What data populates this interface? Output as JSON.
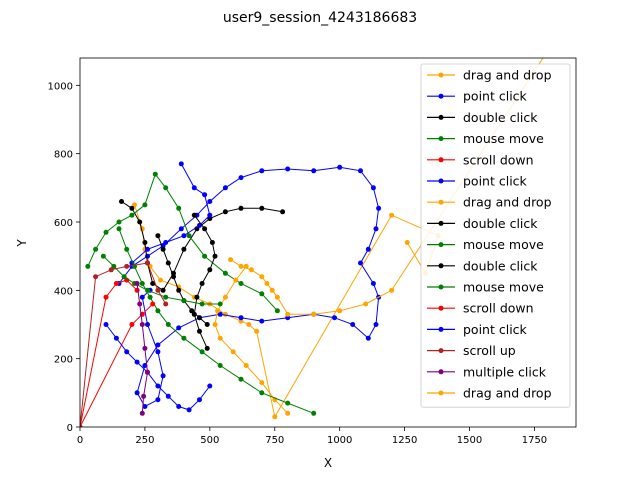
{
  "chart_data": {
    "type": "line",
    "title": "user9_session_4243186683",
    "xlabel": "X",
    "ylabel": "Y",
    "xlim": [
      0,
      1910
    ],
    "ylim": [
      0,
      1080
    ],
    "xticks": [
      0,
      250,
      500,
      750,
      1000,
      1250,
      1500,
      1750
    ],
    "yticks": [
      0,
      200,
      400,
      600,
      800,
      1000
    ],
    "grid": false,
    "legend_position": "top-right",
    "series": [
      {
        "name": "drag and drop",
        "color": "#ffa500",
        "points": [
          [
            210,
            650
          ],
          [
            240,
            580
          ],
          [
            250,
            520
          ],
          [
            270,
            470
          ],
          [
            310,
            430
          ],
          [
            380,
            410
          ],
          [
            440,
            380
          ],
          [
            500,
            360
          ],
          [
            560,
            330
          ],
          [
            620,
            310
          ],
          [
            650,
            300
          ],
          [
            680,
            280
          ],
          [
            750,
            30
          ],
          [
            1200,
            620
          ],
          [
            1380,
            560
          ],
          [
            1330,
            450
          ],
          [
            1260,
            540
          ]
        ]
      },
      {
        "name": "point click",
        "color": "#0000ff",
        "points": [
          [
            150,
            420
          ],
          [
            200,
            470
          ],
          [
            260,
            500
          ],
          [
            320,
            530
          ],
          [
            390,
            580
          ],
          [
            450,
            620
          ],
          [
            500,
            660
          ],
          [
            560,
            700
          ],
          [
            620,
            730
          ],
          [
            700,
            750
          ],
          [
            800,
            755
          ],
          [
            900,
            750
          ],
          [
            1000,
            760
          ],
          [
            1080,
            750
          ],
          [
            1130,
            700
          ],
          [
            1150,
            640
          ],
          [
            1140,
            580
          ],
          [
            1110,
            520
          ],
          [
            1080,
            480
          ],
          [
            1130,
            420
          ],
          [
            1150,
            380
          ],
          [
            1140,
            300
          ],
          [
            1110,
            260
          ],
          [
            1050,
            300
          ],
          [
            980,
            320
          ],
          [
            900,
            330
          ],
          [
            800,
            320
          ],
          [
            700,
            310
          ],
          [
            620,
            320
          ],
          [
            540,
            330
          ],
          [
            460,
            320
          ],
          [
            380,
            290
          ],
          [
            300,
            240
          ],
          [
            250,
            180
          ],
          [
            220,
            100
          ],
          [
            250,
            60
          ],
          [
            300,
            80
          ],
          [
            320,
            150
          ],
          [
            300,
            220
          ],
          [
            260,
            300
          ],
          [
            240,
            380
          ],
          [
            270,
            400
          ]
        ]
      },
      {
        "name": "double click",
        "color": "#000000",
        "points": [
          [
            160,
            660
          ],
          [
            200,
            640
          ],
          [
            230,
            600
          ],
          [
            250,
            540
          ],
          [
            260,
            480
          ],
          [
            280,
            420
          ],
          [
            320,
            400
          ],
          [
            360,
            450
          ],
          [
            400,
            520
          ],
          [
            450,
            580
          ],
          [
            500,
            610
          ],
          [
            560,
            630
          ],
          [
            620,
            640
          ],
          [
            700,
            640
          ],
          [
            780,
            630
          ]
        ]
      },
      {
        "name": "mouse move",
        "color": "#008000",
        "points": [
          [
            30,
            470
          ],
          [
            60,
            520
          ],
          [
            100,
            570
          ],
          [
            150,
            600
          ],
          [
            200,
            620
          ],
          [
            250,
            650
          ],
          [
            290,
            740
          ],
          [
            330,
            700
          ],
          [
            380,
            640
          ],
          [
            420,
            560
          ],
          [
            480,
            500
          ],
          [
            560,
            450
          ],
          [
            620,
            420
          ],
          [
            700,
            390
          ],
          [
            760,
            340
          ]
        ]
      },
      {
        "name": "scroll down",
        "color": "#ff0000",
        "points": [
          [
            0,
            0
          ],
          [
            100,
            380
          ],
          [
            140,
            420
          ],
          [
            180,
            430
          ],
          [
            220,
            400
          ]
        ]
      },
      {
        "name": "point click",
        "color": "#0000ff",
        "points": [
          [
            390,
            770
          ],
          [
            440,
            700
          ],
          [
            480,
            680
          ],
          [
            500,
            620
          ],
          [
            460,
            590
          ],
          [
            400,
            560
          ],
          [
            330,
            540
          ],
          [
            260,
            520
          ],
          [
            200,
            480
          ]
        ]
      },
      {
        "name": "drag and drop",
        "color": "#ffa500",
        "points": [
          [
            640,
            470
          ],
          [
            600,
            430
          ],
          [
            560,
            380
          ],
          [
            530,
            340
          ],
          [
            520,
            300
          ],
          [
            540,
            260
          ],
          [
            590,
            220
          ],
          [
            640,
            180
          ],
          [
            700,
            130
          ],
          [
            750,
            80
          ],
          [
            800,
            40
          ]
        ]
      },
      {
        "name": "double click",
        "color": "#000000",
        "points": [
          [
            300,
            560
          ],
          [
            320,
            520
          ],
          [
            340,
            480
          ],
          [
            360,
            440
          ],
          [
            380,
            400
          ],
          [
            400,
            370
          ],
          [
            430,
            340
          ],
          [
            460,
            320
          ],
          [
            490,
            300
          ]
        ]
      },
      {
        "name": "mouse move",
        "color": "#008000",
        "points": [
          [
            150,
            580
          ],
          [
            180,
            520
          ],
          [
            210,
            470
          ],
          [
            240,
            420
          ],
          [
            270,
            380
          ],
          [
            300,
            340
          ],
          [
            340,
            300
          ],
          [
            400,
            260
          ],
          [
            470,
            220
          ],
          [
            540,
            180
          ],
          [
            620,
            140
          ],
          [
            700,
            100
          ],
          [
            800,
            70
          ],
          [
            900,
            40
          ]
        ]
      },
      {
        "name": "double click",
        "color": "#000000",
        "points": [
          [
            440,
            620
          ],
          [
            480,
            580
          ],
          [
            510,
            540
          ],
          [
            520,
            500
          ],
          [
            500,
            460
          ],
          [
            470,
            420
          ],
          [
            450,
            380
          ],
          [
            440,
            330
          ],
          [
            460,
            280
          ],
          [
            490,
            230
          ]
        ]
      },
      {
        "name": "mouse move",
        "color": "#008000",
        "points": [
          [
            90,
            500
          ],
          [
            130,
            470
          ],
          [
            170,
            440
          ],
          [
            210,
            420
          ],
          [
            260,
            400
          ],
          [
            330,
            380
          ],
          [
            400,
            370
          ],
          [
            470,
            360
          ],
          [
            540,
            360
          ]
        ]
      },
      {
        "name": "scroll down",
        "color": "#ff0000",
        "points": [
          [
            0,
            0
          ],
          [
            200,
            300
          ],
          [
            240,
            330
          ],
          [
            280,
            360
          ]
        ]
      },
      {
        "name": "point click",
        "color": "#0000ff",
        "points": [
          [
            100,
            300
          ],
          [
            140,
            260
          ],
          [
            180,
            220
          ],
          [
            220,
            190
          ],
          [
            260,
            160
          ],
          [
            300,
            120
          ],
          [
            340,
            90
          ],
          [
            380,
            60
          ],
          [
            420,
            50
          ],
          [
            460,
            80
          ],
          [
            500,
            120
          ]
        ]
      },
      {
        "name": "scroll up",
        "color": "#b22222",
        "points": [
          [
            0,
            0
          ],
          [
            60,
            440
          ],
          [
            120,
            460
          ],
          [
            180,
            470
          ],
          [
            260,
            480
          ],
          [
            300,
            400
          ],
          [
            330,
            360
          ]
        ]
      },
      {
        "name": "multiple click",
        "color": "#800080",
        "points": [
          [
            220,
            420
          ],
          [
            230,
            360
          ],
          [
            240,
            300
          ],
          [
            250,
            230
          ],
          [
            260,
            160
          ],
          [
            245,
            90
          ],
          [
            240,
            40
          ]
        ]
      },
      {
        "name": "drag and drop",
        "color": "#ffa500",
        "points": [
          [
            580,
            490
          ],
          [
            620,
            470
          ],
          [
            660,
            460
          ],
          [
            700,
            440
          ],
          [
            720,
            420
          ],
          [
            740,
            400
          ],
          [
            760,
            380
          ],
          [
            800,
            330
          ],
          [
            900,
            330
          ],
          [
            1000,
            340
          ],
          [
            1100,
            360
          ],
          [
            1200,
            400
          ],
          [
            1800,
            1100
          ]
        ]
      }
    ]
  }
}
